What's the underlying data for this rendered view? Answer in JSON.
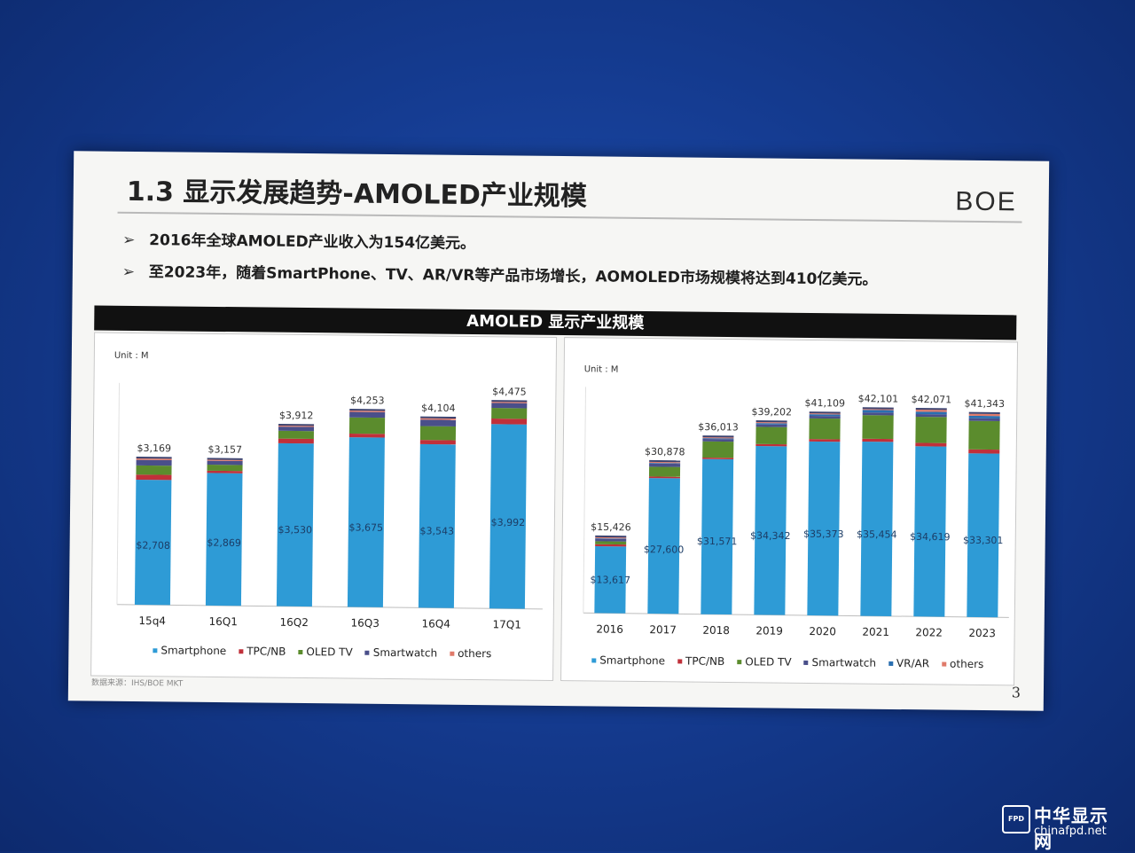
{
  "title": "1.3 显示发展趋势-AMOLED产业规模",
  "logo": "BOE",
  "bullets": [
    "2016年全球AMOLED产业收入为154亿美元。",
    "至2023年，随着SmartPhone、TV、AR/VR等产品市场增长，AOMOLED市场规模将达到410亿美元。"
  ],
  "bullet_mark": "➢",
  "banner": "AMOLED 显示产业规模",
  "source": "数据来源：IHS/BOE MKT",
  "page_number": "3",
  "watermark": {
    "cn": "中华显示网",
    "en": "chinafpd.net",
    "badge": "FPD"
  },
  "colors": {
    "smartphone": "#2e9bd6",
    "tpc_nb": "#c0303a",
    "oled_tv": "#5b8c2d",
    "smartwatch": "#4a4f8a",
    "vr_ar": "#2a6fb0",
    "others": "#e07a6a",
    "background": "#153c92"
  },
  "chart_data": [
    {
      "type": "bar",
      "stacked": true,
      "unit": "Unit : M",
      "categories": [
        "15q4",
        "16Q1",
        "16Q2",
        "16Q3",
        "16Q4",
        "17Q1"
      ],
      "totals": [
        "$3,169",
        "$3,157",
        "$3,912",
        "$4,253",
        "$4,104",
        "$4,475"
      ],
      "total_values": [
        3169,
        3157,
        3912,
        4253,
        4104,
        4475
      ],
      "smartphone_labels": [
        "$2,708",
        "$2,869",
        "$3,530",
        "$3,675",
        "$3,543",
        "$3,992"
      ],
      "ylim": [
        0,
        4800
      ],
      "legend": [
        "Smartphone",
        "TPC/NB",
        "OLED TV",
        "Smartwatch",
        "others"
      ],
      "series": [
        {
          "name": "Smartphone",
          "values": [
            2708,
            2869,
            3530,
            3675,
            3543,
            3992
          ]
        },
        {
          "name": "TPC/NB",
          "values": [
            110,
            50,
            100,
            80,
            90,
            120
          ]
        },
        {
          "name": "OLED TV",
          "values": [
            200,
            130,
            170,
            350,
            300,
            230
          ]
        },
        {
          "name": "Smartwatch",
          "values": [
            120,
            85,
            90,
            120,
            140,
            110
          ]
        },
        {
          "name": "others",
          "values": [
            31,
            23,
            22,
            28,
            31,
            23
          ]
        }
      ]
    },
    {
      "type": "bar",
      "stacked": true,
      "unit": "Unit : M",
      "categories": [
        "2016",
        "2017",
        "2018",
        "2019",
        "2020",
        "2021",
        "2022",
        "2023"
      ],
      "totals": [
        "$15,426",
        "$30,878",
        "$36,013",
        "$39,202",
        "$41,109",
        "$42,101",
        "$42,071",
        "$41,343"
      ],
      "total_values": [
        15426,
        30878,
        36013,
        39202,
        41109,
        42101,
        42071,
        41343
      ],
      "smartphone_labels": [
        "$13,617",
        "$27,600",
        "$31,571",
        "$34,342",
        "$35,373",
        "$35,454",
        "$34,619",
        "$33,301"
      ],
      "ylim": [
        0,
        46000
      ],
      "legend": [
        "Smartphone",
        "TPC/NB",
        "OLED TV",
        "Smartwatch",
        "VR/AR",
        "others"
      ],
      "series": [
        {
          "name": "Smartphone",
          "values": [
            13617,
            27600,
            31571,
            34342,
            35373,
            35454,
            34619,
            33301
          ]
        },
        {
          "name": "TPC/NB",
          "values": [
            400,
            300,
            300,
            400,
            500,
            600,
            700,
            800
          ]
        },
        {
          "name": "OLED TV",
          "values": [
            600,
            2000,
            3300,
            3500,
            4200,
            4800,
            5300,
            5800
          ]
        },
        {
          "name": "Smartwatch",
          "values": [
            500,
            650,
            500,
            500,
            500,
            550,
            550,
            550
          ]
        },
        {
          "name": "VR/AR",
          "values": [
            109,
            128,
            142,
            260,
            336,
            497,
            502,
            492
          ]
        },
        {
          "name": "others",
          "values": [
            200,
            200,
            200,
            200,
            200,
            200,
            400,
            400
          ]
        }
      ]
    }
  ]
}
